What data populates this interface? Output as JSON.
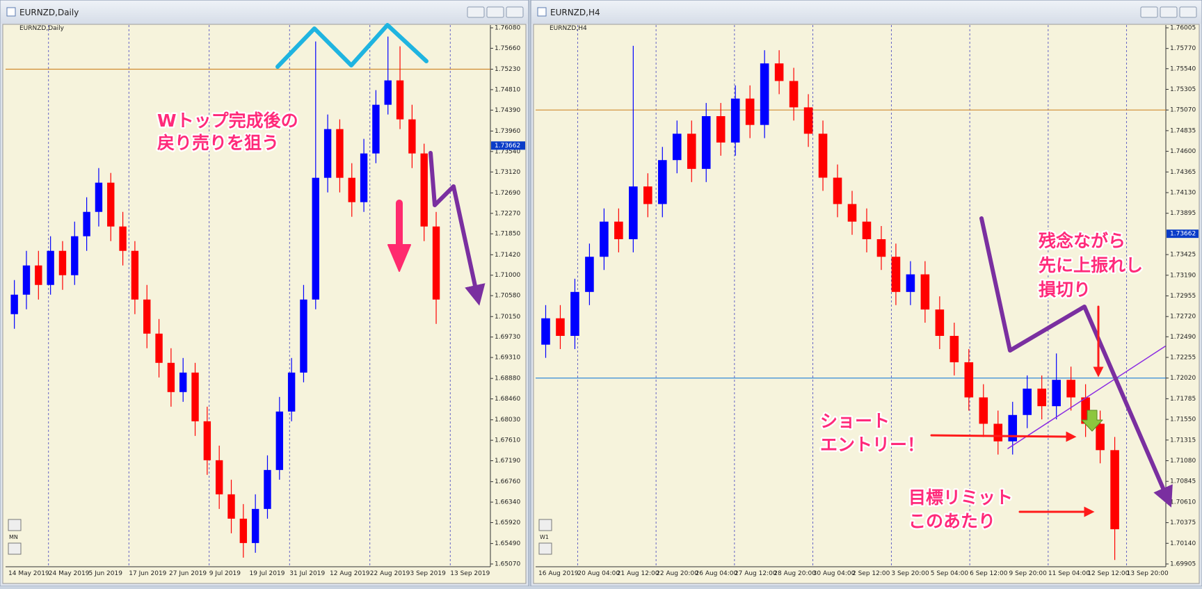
{
  "chart_data": [
    {
      "type": "candlestick",
      "window_title": "EURNZD,Daily",
      "symbol_label": "EURNZD,Daily",
      "period_button": "MN",
      "current_price": {
        "value": 1.73662,
        "label": "1.73662"
      },
      "ylim": [
        1.6507,
        1.7608
      ],
      "yticks": [
        {
          "value": 1.7608,
          "label": "1.76080"
        },
        {
          "value": 1.7566,
          "label": "1.75660"
        },
        {
          "value": 1.7523,
          "label": "1.75230"
        },
        {
          "value": 1.7481,
          "label": "1.74810"
        },
        {
          "value": 1.7439,
          "label": "1.74390"
        },
        {
          "value": 1.7396,
          "label": "1.73960"
        },
        {
          "value": 1.7354,
          "label": "1.73540"
        },
        {
          "value": 1.7312,
          "label": "1.73120"
        },
        {
          "value": 1.7269,
          "label": "1.72690"
        },
        {
          "value": 1.7227,
          "label": "1.72270"
        },
        {
          "value": 1.7185,
          "label": "1.71850"
        },
        {
          "value": 1.7142,
          "label": "1.71420"
        },
        {
          "value": 1.71,
          "label": "1.71000"
        },
        {
          "value": 1.7058,
          "label": "1.70580"
        },
        {
          "value": 1.7015,
          "label": "1.70150"
        },
        {
          "value": 1.6973,
          "label": "1.69730"
        },
        {
          "value": 1.6931,
          "label": "1.69310"
        },
        {
          "value": 1.6888,
          "label": "1.68880"
        },
        {
          "value": 1.6846,
          "label": "1.68460"
        },
        {
          "value": 1.6803,
          "label": "1.68030"
        },
        {
          "value": 1.6761,
          "label": "1.67610"
        },
        {
          "value": 1.6719,
          "label": "1.67190"
        },
        {
          "value": 1.6676,
          "label": "1.66760"
        },
        {
          "value": 1.6634,
          "label": "1.66340"
        },
        {
          "value": 1.6592,
          "label": "1.65920"
        },
        {
          "value": 1.6549,
          "label": "1.65490"
        },
        {
          "value": 1.6507,
          "label": "1.65070"
        }
      ],
      "xtick_labels": [
        "14 May 2019",
        "24 May 2019",
        "5 Jun 2019",
        "17 Jun 2019",
        "27 Jun 2019",
        "9 Jul 2019",
        "19 Jul 2019",
        "31 Jul 2019",
        "12 Aug 2019",
        "22 Aug 2019",
        "3 Sep 2019",
        "13 Sep 2019"
      ],
      "levels": [
        {
          "value": 1.7523,
          "color": "#d08a2e"
        }
      ],
      "bull_color": "#0000ff",
      "bear_color": "#ff0000",
      "open": [
        1.702,
        1.706,
        1.712,
        1.708,
        1.715,
        1.71,
        1.718,
        1.723,
        1.729,
        1.72,
        1.715,
        1.705,
        1.698,
        1.692,
        1.686,
        1.69,
        1.68,
        1.672,
        1.665,
        1.66,
        1.655,
        1.662,
        1.67,
        1.682,
        1.69,
        1.705,
        1.73,
        1.74,
        1.73,
        1.725,
        1.735,
        1.745,
        1.75,
        1.742,
        1.735,
        1.72
      ],
      "high": [
        1.709,
        1.715,
        1.715,
        1.718,
        1.717,
        1.721,
        1.726,
        1.732,
        1.731,
        1.723,
        1.717,
        1.708,
        1.701,
        1.695,
        1.693,
        1.692,
        1.683,
        1.675,
        1.668,
        1.663,
        1.665,
        1.673,
        1.685,
        1.693,
        1.708,
        1.758,
        1.743,
        1.742,
        1.733,
        1.738,
        1.748,
        1.759,
        1.757,
        1.745,
        1.737,
        1.723
      ],
      "low": [
        1.699,
        1.703,
        1.705,
        1.706,
        1.707,
        1.708,
        1.715,
        1.72,
        1.717,
        1.712,
        1.702,
        1.695,
        1.689,
        1.683,
        1.684,
        1.677,
        1.669,
        1.662,
        1.657,
        1.652,
        1.653,
        1.66,
        1.668,
        1.68,
        1.688,
        1.703,
        1.727,
        1.727,
        1.722,
        1.723,
        1.733,
        1.743,
        1.74,
        1.732,
        1.717,
        1.7
      ],
      "close": [
        1.706,
        1.712,
        1.708,
        1.715,
        1.71,
        1.718,
        1.723,
        1.729,
        1.72,
        1.715,
        1.705,
        1.698,
        1.692,
        1.686,
        1.69,
        1.68,
        1.672,
        1.665,
        1.66,
        1.655,
        1.662,
        1.67,
        1.682,
        1.69,
        1.705,
        1.73,
        1.74,
        1.73,
        1.725,
        1.735,
        1.745,
        1.75,
        1.742,
        1.735,
        1.72,
        1.705
      ],
      "annotations": [
        [
          "Wトップ完成後の",
          "戻り売りを狙う"
        ]
      ]
    },
    {
      "type": "candlestick",
      "window_title": "EURNZD,H4",
      "symbol_label": "EURNZD,H4",
      "period_button": "W1",
      "current_price": {
        "value": 1.73662,
        "label": "1.73662"
      },
      "ylim": [
        1.69905,
        1.76005
      ],
      "yticks": [
        {
          "value": 1.76005,
          "label": "1.76005"
        },
        {
          "value": 1.7577,
          "label": "1.75770"
        },
        {
          "value": 1.7554,
          "label": "1.75540"
        },
        {
          "value": 1.75305,
          "label": "1.75305"
        },
        {
          "value": 1.7507,
          "label": "1.75070"
        },
        {
          "value": 1.74835,
          "label": "1.74835"
        },
        {
          "value": 1.746,
          "label": "1.74600"
        },
        {
          "value": 1.74365,
          "label": "1.74365"
        },
        {
          "value": 1.7413,
          "label": "1.74130"
        },
        {
          "value": 1.73895,
          "label": "1.73895"
        },
        {
          "value": 1.73425,
          "label": "1.73425"
        },
        {
          "value": 1.7319,
          "label": "1.73190"
        },
        {
          "value": 1.72955,
          "label": "1.72955"
        },
        {
          "value": 1.7272,
          "label": "1.72720"
        },
        {
          "value": 1.7249,
          "label": "1.72490"
        },
        {
          "value": 1.72255,
          "label": "1.72255"
        },
        {
          "value": 1.7202,
          "label": "1.72020"
        },
        {
          "value": 1.71785,
          "label": "1.71785"
        },
        {
          "value": 1.7155,
          "label": "1.71550"
        },
        {
          "value": 1.71315,
          "label": "1.71315"
        },
        {
          "value": 1.7108,
          "label": "1.71080"
        },
        {
          "value": 1.70845,
          "label": "1.70845"
        },
        {
          "value": 1.7061,
          "label": "1.70610"
        },
        {
          "value": 1.70375,
          "label": "1.70375"
        },
        {
          "value": 1.7014,
          "label": "1.70140"
        },
        {
          "value": 1.69905,
          "label": "1.69905"
        }
      ],
      "xtick_labels": [
        "16 Aug 2019",
        "20 Aug 04:00",
        "21 Aug 12:00",
        "22 Aug 20:00",
        "26 Aug 04:00",
        "27 Aug 12:00",
        "28 Aug 20:00",
        "30 Aug 04:00",
        "2 Sep 12:00",
        "3 Sep 20:00",
        "5 Sep 04:00",
        "6 Sep 12:00",
        "9 Sep 20:00",
        "11 Sep 04:00",
        "12 Sep 12:00",
        "13 Sep 20:00"
      ],
      "levels": [
        {
          "value": 1.7507,
          "color": "#d08a2e"
        },
        {
          "value": 1.7202,
          "color": "#1e7fd8"
        }
      ],
      "bull_color": "#0000ff",
      "bear_color": "#ff0000",
      "open": [
        1.724,
        1.727,
        1.725,
        1.73,
        1.734,
        1.738,
        1.736,
        1.742,
        1.74,
        1.745,
        1.748,
        1.744,
        1.75,
        1.747,
        1.752,
        1.749,
        1.756,
        1.754,
        1.751,
        1.748,
        1.743,
        1.74,
        1.738,
        1.736,
        1.734,
        1.73,
        1.732,
        1.728,
        1.725,
        1.722,
        1.718,
        1.715,
        1.713,
        1.716,
        1.719,
        1.717,
        1.72,
        1.718,
        1.715,
        1.712
      ],
      "high": [
        1.7285,
        1.7285,
        1.7315,
        1.7355,
        1.7395,
        1.7395,
        1.758,
        1.7435,
        1.7465,
        1.7495,
        1.7495,
        1.7515,
        1.7515,
        1.7535,
        1.7535,
        1.7575,
        1.7575,
        1.7555,
        1.7525,
        1.7495,
        1.7445,
        1.7415,
        1.7395,
        1.7375,
        1.7355,
        1.7335,
        1.7335,
        1.7295,
        1.7265,
        1.7235,
        1.7195,
        1.7165,
        1.7175,
        1.7205,
        1.7205,
        1.723,
        1.7215,
        1.7195,
        1.7165,
        1.7135
      ],
      "low": [
        1.7225,
        1.7235,
        1.7235,
        1.7285,
        1.7325,
        1.7345,
        1.7345,
        1.7385,
        1.7385,
        1.7435,
        1.7425,
        1.7425,
        1.7455,
        1.7455,
        1.7475,
        1.7475,
        1.7525,
        1.7495,
        1.7465,
        1.7415,
        1.7385,
        1.7365,
        1.7345,
        1.7325,
        1.7285,
        1.7285,
        1.7265,
        1.7235,
        1.7205,
        1.7165,
        1.7135,
        1.7115,
        1.7115,
        1.7145,
        1.7155,
        1.7155,
        1.7165,
        1.7135,
        1.7105,
        1.6995
      ],
      "close": [
        1.727,
        1.725,
        1.73,
        1.734,
        1.738,
        1.736,
        1.742,
        1.74,
        1.745,
        1.748,
        1.744,
        1.75,
        1.747,
        1.752,
        1.749,
        1.756,
        1.754,
        1.751,
        1.748,
        1.743,
        1.74,
        1.738,
        1.736,
        1.734,
        1.73,
        1.732,
        1.728,
        1.725,
        1.722,
        1.718,
        1.715,
        1.713,
        1.716,
        1.719,
        1.717,
        1.72,
        1.718,
        1.715,
        1.712,
        1.703
      ],
      "annotations": [
        [
          "残念ながら",
          "先に上振れし",
          "損切り"
        ],
        [
          "ショート",
          "エントリー！"
        ],
        [
          "目標リミット",
          "このあたり"
        ]
      ]
    }
  ]
}
